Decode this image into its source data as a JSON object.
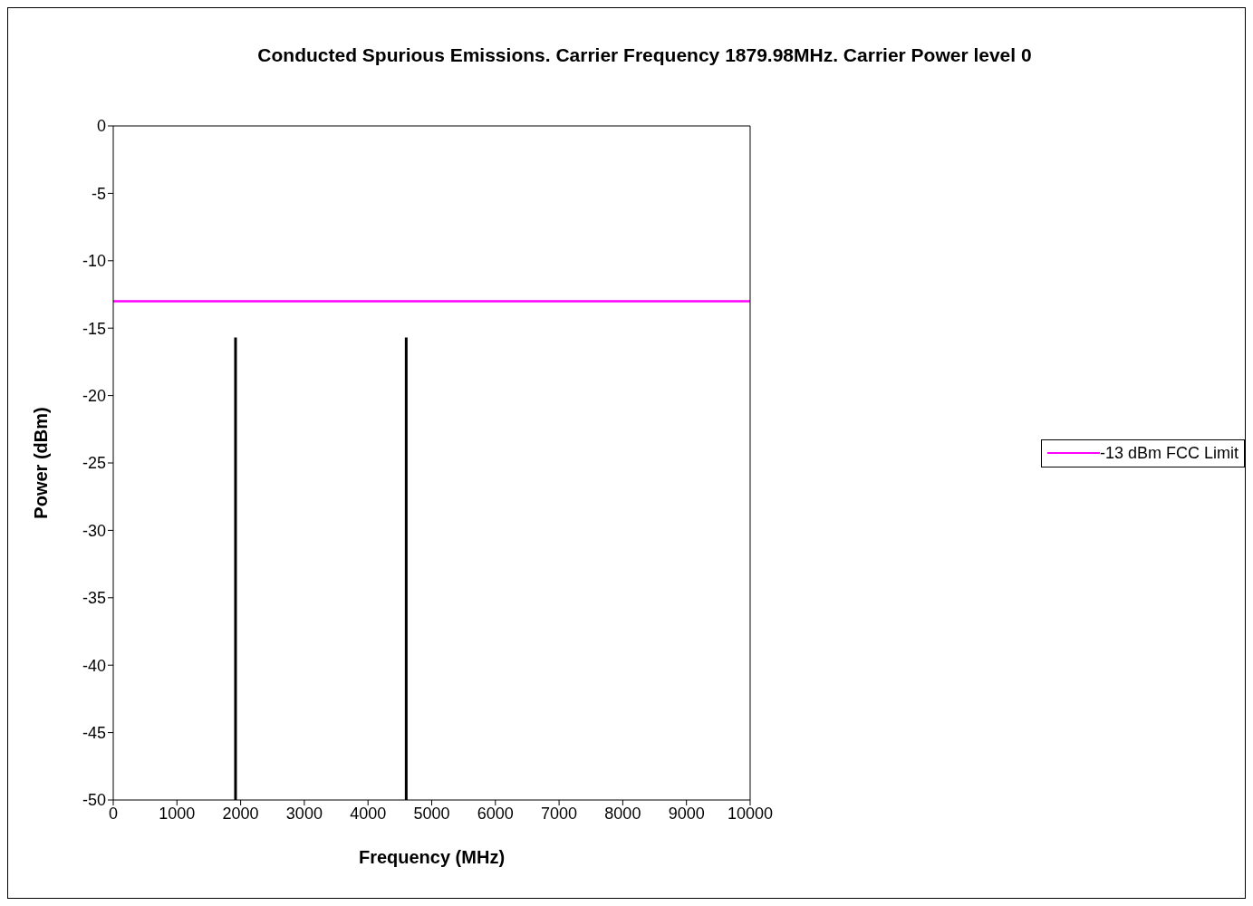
{
  "chart_data": {
    "type": "line",
    "title": "Conducted Spurious Emissions. Carrier Frequency 1879.98MHz. Carrier Power level 0",
    "xlabel": "Frequency (MHz)",
    "ylabel": "Power (dBm)",
    "series": [
      {
        "name": "-13 dBm FCC Limit",
        "color": "#ff00ff",
        "x": [
          0,
          10000
        ],
        "values": [
          -13,
          -13
        ]
      },
      {
        "color": "#000000",
        "x": [
          1920,
          1920
        ],
        "values": [
          -50,
          -15.7
        ]
      },
      {
        "color": "#000000",
        "x": [
          4600,
          4600
        ],
        "values": [
          -50,
          -15.7
        ]
      }
    ],
    "xlim": [
      0,
      10000
    ],
    "xticks": [
      0,
      1000,
      2000,
      3000,
      4000,
      5000,
      6000,
      7000,
      8000,
      9000,
      10000
    ],
    "ylim": [
      -50,
      0
    ],
    "yticks": [
      0,
      -5,
      -10,
      -15,
      -20,
      -25,
      -30,
      -35,
      -40,
      -45,
      -50
    ],
    "grid": false,
    "legend": "right",
    "marker": "none",
    "line_style": "solid"
  }
}
